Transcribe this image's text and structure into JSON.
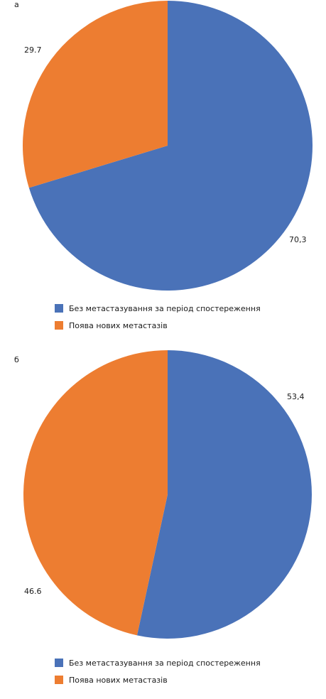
{
  "chart_data": [
    {
      "type": "pie",
      "panel_label": "а",
      "series": [
        {
          "name": "Без метастазування за період спостереження",
          "value": 70.3,
          "label": "70,3",
          "color": "#4a72b8"
        },
        {
          "name": "Поява нових метастазів",
          "value": 29.7,
          "label": "29.7",
          "color": "#ed7d31"
        }
      ],
      "legend_position": "bottom"
    },
    {
      "type": "pie",
      "panel_label": "б",
      "series": [
        {
          "name": "Без метастазування за період спостереження",
          "value": 53.4,
          "label": "53,4",
          "color": "#4a72b8"
        },
        {
          "name": "Поява нових метастазів",
          "value": 46.6,
          "label": "46.6",
          "color": "#ed7d31"
        }
      ],
      "legend_position": "bottom"
    }
  ]
}
